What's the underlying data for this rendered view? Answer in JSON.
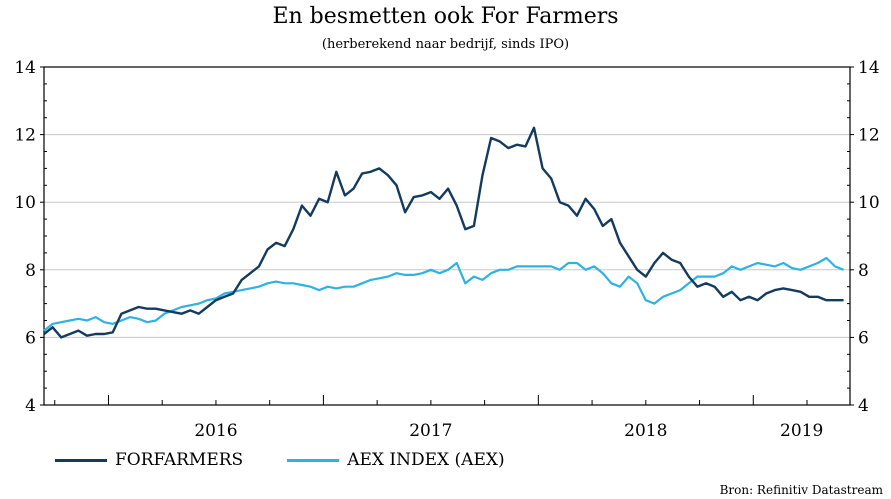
{
  "chart_data": {
    "type": "line",
    "title": "En besmetten ook For Farmers",
    "subtitle": "(herberekend naar bedrijf, sinds IPO)",
    "ylim": [
      4,
      14
    ],
    "yticks": [
      "4",
      "6",
      "8",
      "10",
      "12",
      "14"
    ],
    "xlim": [
      2015.7,
      2019.45
    ],
    "year_labels": [
      {
        "label": "2016",
        "x": 2016.0
      },
      {
        "label": "2017",
        "x": 2017.0
      },
      {
        "label": "2018",
        "x": 2018.0
      },
      {
        "label": "2019",
        "x": 2019.0
      }
    ],
    "grid": "horizontal",
    "legend_position": "bottom",
    "source": "Bron: Refinitiv Datastream",
    "series": [
      {
        "name": "FORFARMERS",
        "color": "#143b5e",
        "x": [
          2015.7,
          2015.74,
          2015.78,
          2015.82,
          2015.86,
          2015.9,
          2015.94,
          2015.98,
          2016.02,
          2016.06,
          2016.1,
          2016.14,
          2016.18,
          2016.22,
          2016.26,
          2016.3,
          2016.34,
          2016.38,
          2016.42,
          2016.46,
          2016.5,
          2016.54,
          2016.58,
          2016.62,
          2016.66,
          2016.7,
          2016.74,
          2016.78,
          2016.82,
          2016.86,
          2016.9,
          2016.94,
          2016.98,
          2017.02,
          2017.06,
          2017.1,
          2017.14,
          2017.18,
          2017.22,
          2017.26,
          2017.3,
          2017.34,
          2017.38,
          2017.42,
          2017.46,
          2017.5,
          2017.54,
          2017.58,
          2017.62,
          2017.66,
          2017.7,
          2017.74,
          2017.78,
          2017.82,
          2017.86,
          2017.9,
          2017.94,
          2017.98,
          2018.02,
          2018.06,
          2018.1,
          2018.14,
          2018.18,
          2018.22,
          2018.26,
          2018.3,
          2018.34,
          2018.38,
          2018.42,
          2018.46,
          2018.5,
          2018.54,
          2018.58,
          2018.62,
          2018.66,
          2018.7,
          2018.74,
          2018.78,
          2018.82,
          2018.86,
          2018.9,
          2018.94,
          2018.98,
          2019.02,
          2019.06,
          2019.1,
          2019.14,
          2019.18,
          2019.22,
          2019.26,
          2019.3,
          2019.34,
          2019.38,
          2019.42
        ],
        "values": [
          6.1,
          6.3,
          6.0,
          6.1,
          6.2,
          6.05,
          6.1,
          6.1,
          6.15,
          6.7,
          6.8,
          6.9,
          6.85,
          6.85,
          6.8,
          6.75,
          6.7,
          6.8,
          6.7,
          6.9,
          7.1,
          7.2,
          7.3,
          7.7,
          7.9,
          8.1,
          8.6,
          8.8,
          8.7,
          9.2,
          9.9,
          9.6,
          10.1,
          10.0,
          10.9,
          10.2,
          10.4,
          10.85,
          10.9,
          11.0,
          10.8,
          10.5,
          9.7,
          10.15,
          10.2,
          10.3,
          10.1,
          10.4,
          9.9,
          9.2,
          9.3,
          10.8,
          11.9,
          11.8,
          11.6,
          11.7,
          11.65,
          12.2,
          11.0,
          10.7,
          10.0,
          9.9,
          9.6,
          10.1,
          9.8,
          9.3,
          9.5,
          8.8,
          8.4,
          8.0,
          7.8,
          8.2,
          8.5,
          8.3,
          8.2,
          7.8,
          7.5,
          7.6,
          7.5,
          7.2,
          7.35,
          7.1,
          7.2,
          7.1,
          7.3,
          7.4,
          7.45,
          7.4,
          7.35,
          7.2,
          7.2,
          7.1,
          7.1,
          7.1
        ]
      },
      {
        "name": "AEX INDEX (AEX)",
        "color": "#2eb2e6",
        "x": [
          2015.7,
          2015.74,
          2015.78,
          2015.82,
          2015.86,
          2015.9,
          2015.94,
          2015.98,
          2016.02,
          2016.06,
          2016.1,
          2016.14,
          2016.18,
          2016.22,
          2016.26,
          2016.3,
          2016.34,
          2016.38,
          2016.42,
          2016.46,
          2016.5,
          2016.54,
          2016.58,
          2016.62,
          2016.66,
          2016.7,
          2016.74,
          2016.78,
          2016.82,
          2016.86,
          2016.9,
          2016.94,
          2016.98,
          2017.02,
          2017.06,
          2017.1,
          2017.14,
          2017.18,
          2017.22,
          2017.26,
          2017.3,
          2017.34,
          2017.38,
          2017.42,
          2017.46,
          2017.5,
          2017.54,
          2017.58,
          2017.62,
          2017.66,
          2017.7,
          2017.74,
          2017.78,
          2017.82,
          2017.86,
          2017.9,
          2017.94,
          2017.98,
          2018.02,
          2018.06,
          2018.1,
          2018.14,
          2018.18,
          2018.22,
          2018.26,
          2018.3,
          2018.34,
          2018.38,
          2018.42,
          2018.46,
          2018.5,
          2018.54,
          2018.58,
          2018.62,
          2018.66,
          2018.7,
          2018.74,
          2018.78,
          2018.82,
          2018.86,
          2018.9,
          2018.94,
          2018.98,
          2019.02,
          2019.06,
          2019.1,
          2019.14,
          2019.18,
          2019.22,
          2019.26,
          2019.3,
          2019.34,
          2019.38,
          2019.42
        ],
        "values": [
          6.2,
          6.4,
          6.45,
          6.5,
          6.55,
          6.5,
          6.6,
          6.45,
          6.4,
          6.5,
          6.6,
          6.55,
          6.45,
          6.5,
          6.7,
          6.8,
          6.9,
          6.95,
          7.0,
          7.1,
          7.15,
          7.3,
          7.35,
          7.4,
          7.45,
          7.5,
          7.6,
          7.65,
          7.6,
          7.6,
          7.55,
          7.5,
          7.4,
          7.5,
          7.45,
          7.5,
          7.5,
          7.6,
          7.7,
          7.75,
          7.8,
          7.9,
          7.85,
          7.85,
          7.9,
          8.0,
          7.9,
          8.0,
          8.2,
          7.6,
          7.8,
          7.7,
          7.9,
          8.0,
          8.0,
          8.1,
          8.1,
          8.1,
          8.1,
          8.1,
          8.0,
          8.2,
          8.2,
          8.0,
          8.1,
          7.9,
          7.6,
          7.5,
          7.8,
          7.6,
          7.1,
          7.0,
          7.2,
          7.3,
          7.4,
          7.6,
          7.8,
          7.8,
          7.8,
          7.9,
          8.1,
          8.0,
          8.1,
          8.2,
          8.15,
          8.1,
          8.2,
          8.05,
          8.0,
          8.1,
          8.2,
          8.35,
          8.1,
          8.0
        ]
      }
    ]
  }
}
